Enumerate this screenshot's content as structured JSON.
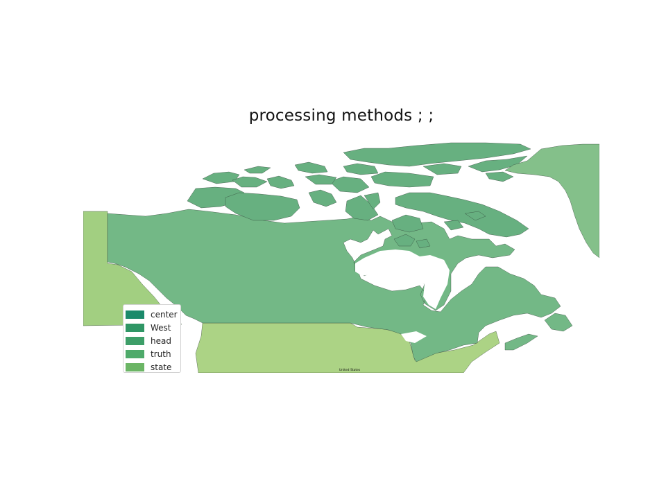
{
  "title": "processing methods ; ;",
  "map": {
    "region_label": "United States",
    "colors": {
      "canada_mainland": "#73b886",
      "arctic_islands": "#67b080",
      "greenland": "#84c08a",
      "united_states": "#acd385",
      "alaska": "#a2cf81",
      "water": "#ffffff",
      "coastline": "#2b3b30"
    }
  },
  "legend": {
    "items": [
      {
        "label": "center",
        "color": "#1b8a6b"
      },
      {
        "label": "West",
        "color": "#2f9665"
      },
      {
        "label": "head",
        "color": "#3d9e68"
      },
      {
        "label": "truth",
        "color": "#4eaa6a"
      },
      {
        "label": "state",
        "color": "#6bb565"
      }
    ]
  }
}
